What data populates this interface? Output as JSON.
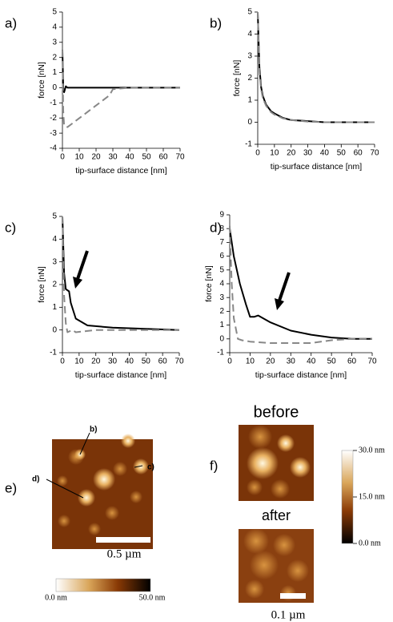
{
  "chart_data": [
    {
      "type": "line",
      "label": "a)",
      "x_label": "tip-surface distance [nm]",
      "y_label": "force [nN]",
      "xlim": [
        0,
        70
      ],
      "xticks": [
        0,
        10,
        20,
        30,
        40,
        50,
        60,
        70
      ],
      "ylim": [
        -4,
        5
      ],
      "yticks": [
        -4,
        -3,
        -2,
        -1,
        0,
        1,
        2,
        3,
        4,
        5
      ],
      "series": [
        {
          "color": "#000000",
          "style": "solid",
          "x": [
            0,
            0.5,
            1,
            1.5,
            2,
            3,
            5,
            10,
            20,
            30,
            40,
            50,
            60,
            70
          ],
          "values": [
            2.5,
            0,
            -0.3,
            -0.1,
            0.1,
            0,
            0,
            0,
            0,
            0,
            0,
            0,
            0,
            0
          ]
        },
        {
          "color": "#888888",
          "style": "dashed",
          "x": [
            0,
            0.5,
            1,
            3,
            28,
            30,
            40,
            50,
            60,
            70
          ],
          "values": [
            2.5,
            -1.5,
            -2.5,
            -2.6,
            -0.5,
            -0.1,
            0,
            0,
            0,
            0
          ]
        }
      ]
    },
    {
      "type": "line",
      "label": "b)",
      "x_label": "tip-surface distance [nm]",
      "y_label": "force [nN]",
      "xlim": [
        0,
        70
      ],
      "xticks": [
        0,
        10,
        20,
        30,
        40,
        50,
        60,
        70
      ],
      "ylim": [
        -1,
        5
      ],
      "yticks": [
        -1,
        0,
        1,
        2,
        3,
        4,
        5
      ],
      "series": [
        {
          "color": "#000000",
          "style": "solid",
          "x": [
            0,
            1,
            2,
            3,
            5,
            8,
            10,
            15,
            20,
            30,
            40,
            50,
            60,
            70
          ],
          "values": [
            5,
            2.5,
            1.6,
            1.2,
            0.8,
            0.5,
            0.4,
            0.2,
            0.1,
            0.05,
            0,
            0,
            0,
            0
          ]
        },
        {
          "color": "#888888",
          "style": "dashed",
          "x": [
            0,
            1,
            2,
            3,
            5,
            8,
            10,
            15,
            20,
            30,
            40,
            50,
            60,
            70
          ],
          "values": [
            5,
            2.3,
            1.5,
            1.1,
            0.75,
            0.45,
            0.35,
            0.18,
            0.1,
            0.03,
            0,
            0,
            0,
            0
          ]
        }
      ]
    },
    {
      "type": "line",
      "label": "c)",
      "x_label": "tip-surface distance [nm]",
      "y_label": "force [nN]",
      "xlim": [
        0,
        70
      ],
      "xticks": [
        0,
        10,
        20,
        30,
        40,
        50,
        60,
        70
      ],
      "ylim": [
        -1,
        5
      ],
      "yticks": [
        -1,
        0,
        1,
        2,
        3,
        4,
        5
      ],
      "series": [
        {
          "color": "#000000",
          "style": "solid",
          "x": [
            0,
            1,
            2,
            4,
            5,
            8,
            15,
            30,
            50,
            70
          ],
          "values": [
            5,
            2.5,
            1.8,
            1.7,
            1.2,
            0.5,
            0.2,
            0.1,
            0.05,
            0
          ]
        },
        {
          "color": "#888888",
          "style": "dashed",
          "x": [
            0,
            1,
            2,
            3,
            6,
            8,
            14,
            20,
            70
          ],
          "values": [
            5,
            1.5,
            0.3,
            -0.1,
            0,
            -0.1,
            -0.05,
            0,
            0
          ]
        }
      ]
    },
    {
      "type": "line",
      "label": "d)",
      "x_label": "tip-surface distance [nm]",
      "y_label": "force [nN]",
      "xlim": [
        0,
        70
      ],
      "xticks": [
        0,
        10,
        20,
        30,
        40,
        50,
        60,
        70
      ],
      "ylim": [
        -1,
        9
      ],
      "yticks": [
        -1,
        0,
        1,
        2,
        3,
        4,
        5,
        6,
        7,
        8,
        9
      ],
      "series": [
        {
          "color": "#000000",
          "style": "solid",
          "x": [
            0,
            2,
            5,
            8,
            10,
            12,
            14,
            20,
            30,
            40,
            50,
            60,
            70
          ],
          "values": [
            8,
            6,
            4,
            2.5,
            1.6,
            1.6,
            1.7,
            1.2,
            0.6,
            0.3,
            0.1,
            0,
            0
          ]
        },
        {
          "color": "#888888",
          "style": "dashed",
          "x": [
            0,
            1,
            2,
            4,
            6,
            10,
            20,
            40,
            50,
            60,
            70
          ],
          "values": [
            8.2,
            4,
            1.5,
            0,
            -0.1,
            -0.2,
            -0.3,
            -0.3,
            -0.1,
            0,
            0
          ]
        }
      ]
    }
  ],
  "panels": {
    "e": {
      "label": "e)",
      "markers": [
        "b)",
        "c)",
        "d)"
      ],
      "scale_bar": "0.5 µm",
      "colorbar": [
        "0.0 nm",
        "50.0 nm"
      ]
    },
    "f": {
      "label": "f)",
      "before": "before",
      "after": "after",
      "scale_bar": "0.1 µm",
      "colorbar": [
        "30.0 nm",
        "15.0 nm",
        "0.0 nm"
      ]
    }
  }
}
